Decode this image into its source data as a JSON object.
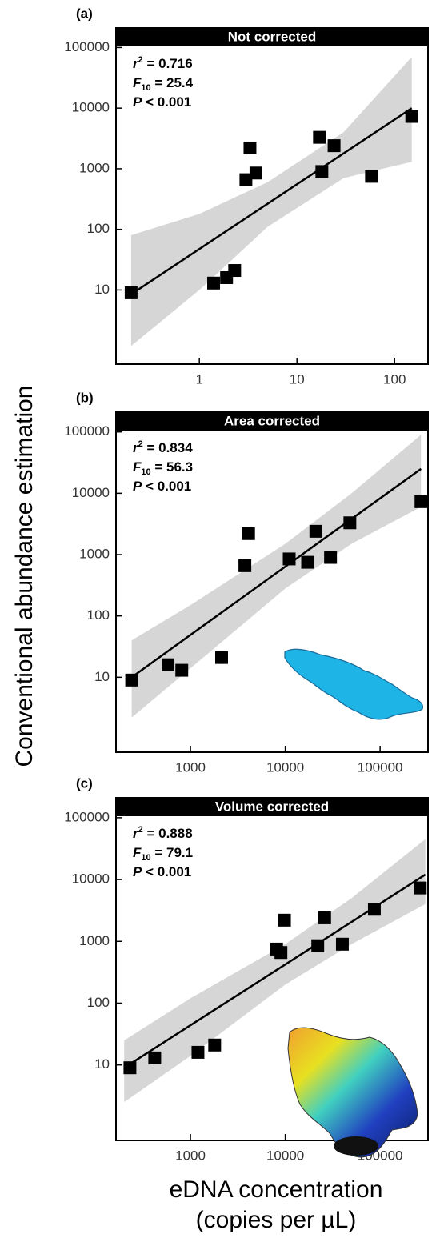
{
  "ylabel": "Conventional abundance estimation",
  "xlabel": [
    "eDNA concentration",
    "(copies per µL)"
  ],
  "chart_data": [
    {
      "type": "scatter",
      "panel_label": "(a)",
      "title": "Not corrected",
      "log": true,
      "stats": [
        {
          "main": "r",
          "sup": "2",
          "text": " = 0.716"
        },
        {
          "main": "F",
          "sub": "10",
          "text": " = 25.4"
        },
        {
          "main": "P",
          "text": " < 0.001"
        }
      ],
      "x": [
        0.2,
        1.4,
        1.9,
        2.3,
        3.0,
        3.3,
        3.8,
        17,
        18,
        24,
        58,
        150
      ],
      "y": [
        9,
        13,
        16,
        21,
        660,
        2200,
        850,
        3300,
        900,
        2400,
        750,
        7300
      ],
      "fit_x": [
        0.2,
        150
      ],
      "fit_y": [
        8.5,
        10000
      ],
      "band_x": [
        0.2,
        1,
        5,
        30,
        150
      ],
      "band_upper": [
        80,
        180,
        600,
        4000,
        70000
      ],
      "band_lower": [
        1.2,
        10,
        110,
        700,
        1300
      ],
      "xlim": [
        0.14,
        220
      ],
      "ylim": [
        0.6,
        210000
      ],
      "xticks": [
        1,
        10,
        100
      ],
      "yticks": [
        10,
        100,
        1000,
        10000,
        100000
      ]
    },
    {
      "type": "scatter",
      "panel_label": "(b)",
      "title": "Area corrected",
      "log": true,
      "stats": [
        {
          "main": "r",
          "sup": "2",
          "text": " = 0.834"
        },
        {
          "main": "F",
          "sub": "10",
          "text": " = 56.3"
        },
        {
          "main": "P",
          "text": " < 0.001"
        }
      ],
      "x": [
        240,
        580,
        810,
        2130,
        3750,
        4100,
        11000,
        17200,
        21000,
        30000,
        48000,
        270000
      ],
      "y": [
        9,
        16,
        13,
        21,
        660,
        2200,
        850,
        750,
        2400,
        900,
        3300,
        7300
      ],
      "fit_x": [
        240,
        270000
      ],
      "fit_y": [
        10,
        25000
      ],
      "band_x": [
        240,
        1000,
        10000,
        50000,
        270000
      ],
      "band_upper": [
        40,
        150,
        1500,
        10000,
        90000
      ],
      "band_lower": [
        2.2,
        14,
        280,
        1500,
        6000
      ],
      "xlim": [
        164,
        320000
      ],
      "ylim": [
        0.6,
        210000
      ],
      "xticks": [
        1000,
        10000,
        100000
      ],
      "yticks": [
        10,
        100,
        1000,
        10000,
        100000
      ]
    },
    {
      "type": "scatter",
      "panel_label": "(c)",
      "title": "Volume corrected",
      "log": true,
      "stats": [
        {
          "main": "r",
          "sup": "2",
          "text": " = 0.888"
        },
        {
          "main": "F",
          "sub": "10",
          "text": " = 79.1"
        },
        {
          "main": "P",
          "text": " < 0.001"
        }
      ],
      "x": [
        230,
        420,
        1200,
        1800,
        8100,
        9000,
        9800,
        22000,
        26000,
        40000,
        87000,
        265000
      ],
      "y": [
        9,
        13,
        16,
        21,
        750,
        660,
        2200,
        850,
        2400,
        900,
        3300,
        7300
      ],
      "fit_x": [
        200,
        300000
      ],
      "fit_y": [
        9,
        12000
      ],
      "band_x": [
        200,
        1000,
        10000,
        50000,
        300000
      ],
      "band_upper": [
        25,
        120,
        900,
        5000,
        45000
      ],
      "band_lower": [
        2.5,
        14,
        200,
        900,
        4000
      ],
      "xlim": [
        164,
        320000
      ],
      "ylim": [
        0.6,
        210000
      ],
      "xticks": [
        1000,
        10000,
        100000
      ],
      "yticks": [
        10,
        100,
        1000,
        10000,
        100000
      ]
    }
  ]
}
